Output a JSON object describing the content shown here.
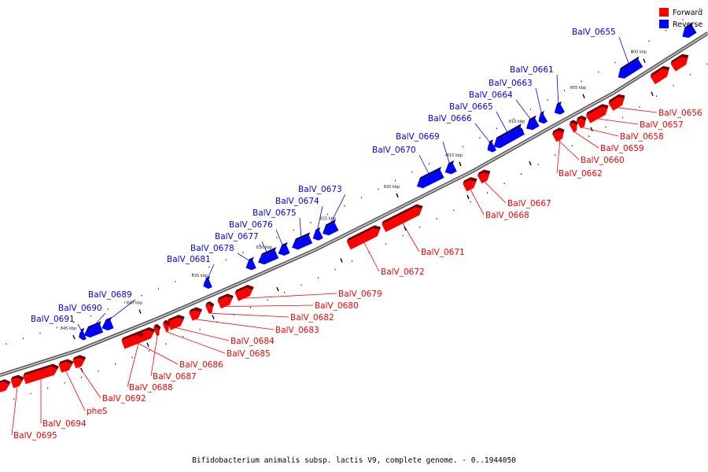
{
  "caption": "Bifidobacterium animalis subsp. lactis V9, complete genome. - 0..1944050",
  "legend": {
    "forward": {
      "label": "Forward",
      "color": "#ff0000"
    },
    "reverse": {
      "label": "Reverse",
      "color": "#0000ff"
    }
  },
  "colors": {
    "forward": "#ff0000",
    "reverse": "#0000ff",
    "backbone": "#7a7a7a"
  },
  "scale_ticks": [
    "800 kbp",
    "805 kbp",
    "810 kbp",
    "815 kbp",
    "820 kbp",
    "825 kbp",
    "830 kbp",
    "835 kbp",
    "840 kbp",
    "845 kbp"
  ],
  "reverse_genes": [
    "BalV_0655",
    "BalV_0661",
    "BalV_0663",
    "BalV_0664",
    "BalV_0665",
    "BalV_0666",
    "BalV_0669",
    "BalV_0670",
    "BalV_0673",
    "BalV_0674",
    "BalV_0675",
    "BalV_0676",
    "BalV_0677",
    "BalV_0678",
    "BalV_0681",
    "BalV_0689",
    "BalV_0690",
    "BalV_0691"
  ],
  "forward_genes": [
    "BalV_0656",
    "BalV_0657",
    "BalV_0658",
    "BalV_0659",
    "BalV_0660",
    "BalV_0662",
    "BalV_0667",
    "BalV_0668",
    "BalV_0671",
    "BalV_0672",
    "BalV_0679",
    "BalV_0680",
    "BalV_0682",
    "BalV_0683",
    "BalV_0684",
    "BalV_0685",
    "BalV_0686",
    "BalV_0687",
    "BalV_0688",
    "BalV_0692",
    "pheS",
    "BalV_0694",
    "BalV_0695"
  ]
}
